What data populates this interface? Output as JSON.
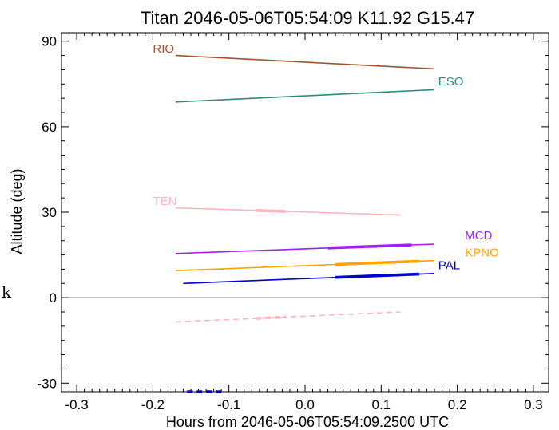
{
  "chart_data": {
    "type": "line",
    "title": "Titan 2046-05-06T05:54:09  K11.92  G15.47",
    "xlabel": "Hours from 2046-05-06T05:54:09.2500 UTC",
    "ylabel": "Altitude (deg)",
    "side_label": "k",
    "xlim": [
      -0.32,
      0.32
    ],
    "ylim": [
      -33,
      93
    ],
    "x_ticks": [
      {
        "v": -0.3,
        "label": "-0.3"
      },
      {
        "v": -0.2,
        "label": "-0.2"
      },
      {
        "v": -0.1,
        "label": "-0.1"
      },
      {
        "v": 0.0,
        "label": "0.0"
      },
      {
        "v": 0.1,
        "label": "0.1"
      },
      {
        "v": 0.2,
        "label": "0.2"
      },
      {
        "v": 0.3,
        "label": "0.3"
      }
    ],
    "y_ticks": [
      {
        "v": -30,
        "label": "-30"
      },
      {
        "v": 0,
        "label": "0"
      },
      {
        "v": 30,
        "label": "30"
      },
      {
        "v": 60,
        "label": "60"
      },
      {
        "v": 90,
        "label": "90"
      }
    ],
    "series": [
      {
        "name": "RIO",
        "color": "#a0522d",
        "x": [
          -0.17,
          0.17
        ],
        "y": [
          85.0,
          80.3
        ],
        "label_x": -0.2,
        "label_y": 86.0
      },
      {
        "name": "ESO",
        "color": "#2e8b7a",
        "x": [
          -0.17,
          0.17
        ],
        "y": [
          68.7,
          73.0
        ],
        "label_x": 0.175,
        "label_y": 74.5
      },
      {
        "name": "TEN",
        "color": "#ffb6c1",
        "x": [
          -0.17,
          0.125
        ],
        "y": [
          31.5,
          29.0
        ],
        "bold": [
          -0.065,
          -0.025
        ],
        "label_x": -0.2,
        "label_y": 32.5
      },
      {
        "name": "MCD",
        "color": "#a020f0",
        "x": [
          -0.17,
          0.17
        ],
        "y": [
          15.5,
          18.8
        ],
        "bold": [
          0.03,
          0.14
        ],
        "label_x": 0.21,
        "label_y": 20.5
      },
      {
        "name": "KPNO",
        "color": "#ffa500",
        "x": [
          -0.17,
          0.17
        ],
        "y": [
          9.5,
          13.0
        ],
        "bold": [
          0.04,
          0.15
        ],
        "label_x": 0.21,
        "label_y": 14.5
      },
      {
        "name": "PAL",
        "color": "#0000cd",
        "x": [
          -0.16,
          0.17
        ],
        "y": [
          5.0,
          8.5
        ],
        "bold": [
          0.04,
          0.15
        ],
        "label_x": 0.175,
        "label_y": 10.0
      },
      {
        "name": "",
        "color": "#ffb6c1",
        "dashed": true,
        "x": [
          -0.17,
          0.125
        ],
        "y": [
          -8.5,
          -5.0
        ],
        "bold": [
          -0.065,
          -0.025
        ]
      },
      {
        "name": "",
        "color": "#0000cd",
        "dashed": true,
        "x": [
          -0.155,
          -0.11
        ],
        "y": [
          -33.0,
          -33.0
        ],
        "bold": [
          -0.155,
          -0.11
        ]
      }
    ]
  }
}
